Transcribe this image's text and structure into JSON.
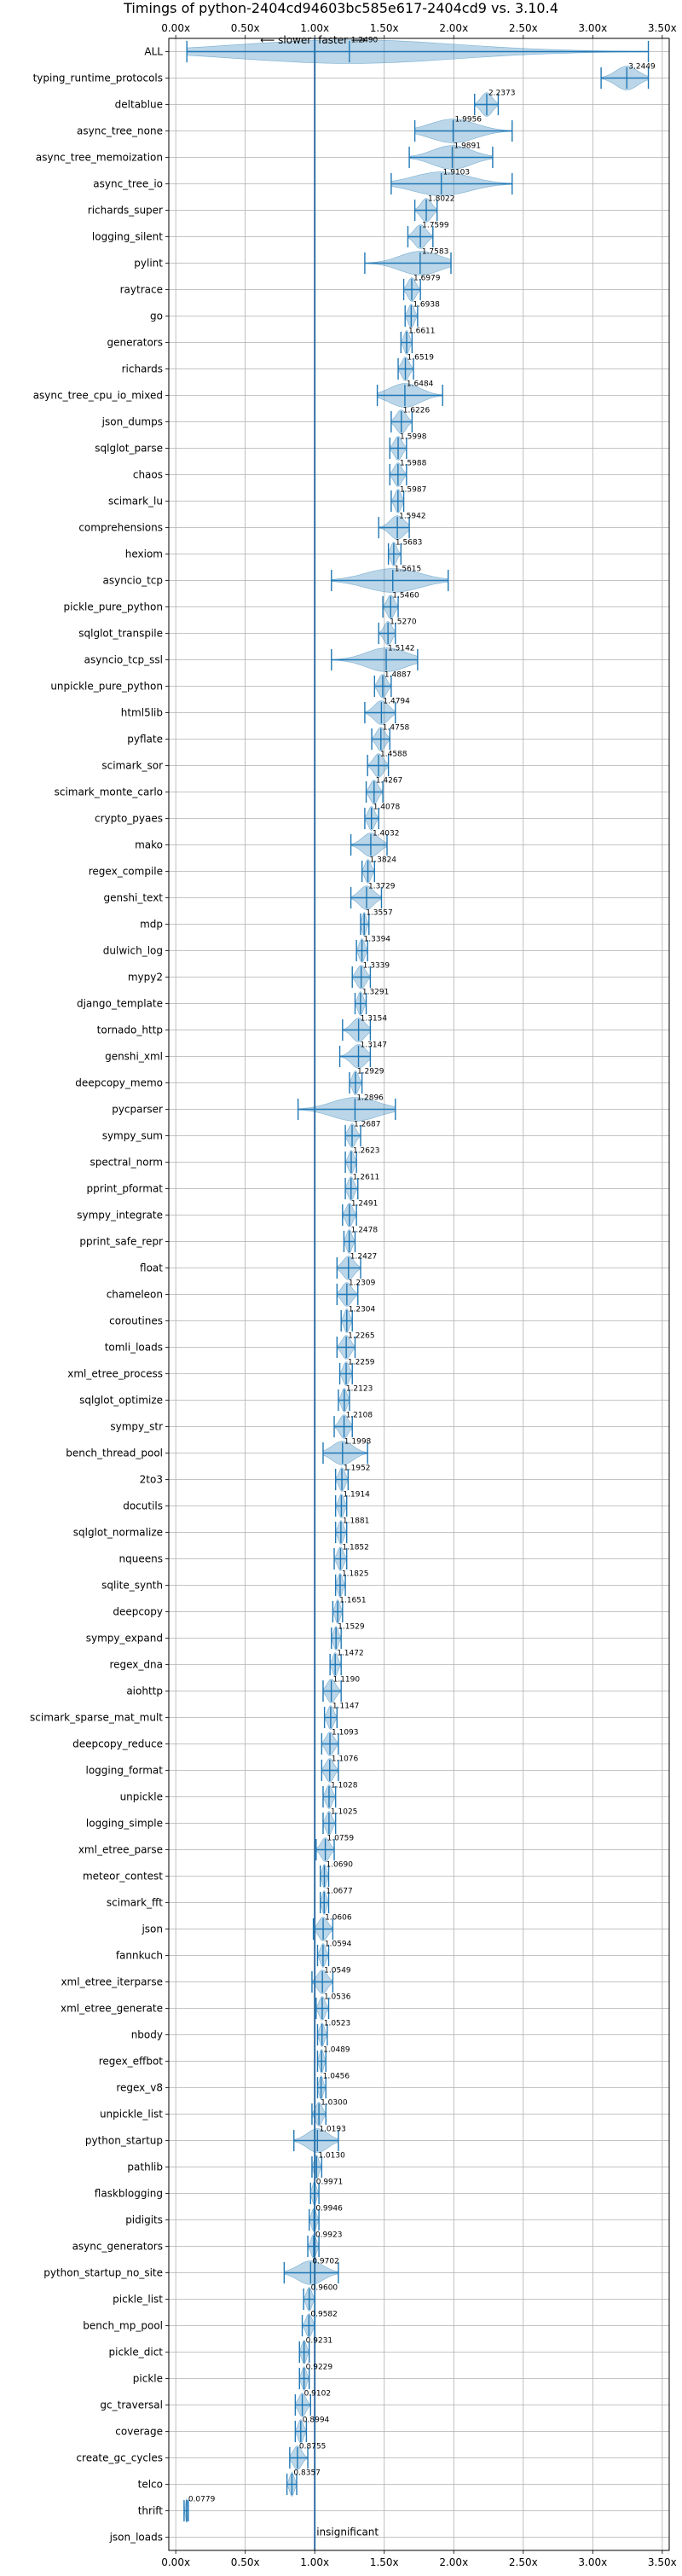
{
  "chart_data": {
    "type": "violin",
    "title": "Timings of python-2404cd94603bc585e617-2404cd9 vs. 3.10.4",
    "xlabel": "",
    "ylabel": "",
    "xlim": [
      -0.05,
      3.55
    ],
    "xticks": [
      0.0,
      0.5,
      1.0,
      1.5,
      2.0,
      2.5,
      3.0,
      3.5
    ],
    "xtick_labels": [
      "0.00x",
      "0.50x",
      "1.00x",
      "1.50x",
      "2.00x",
      "2.50x",
      "3.00x",
      "3.50x"
    ],
    "grid": true,
    "reference_line": 1.0,
    "annotations": {
      "slower": "⟵ slower",
      "faster": "faster ⟶",
      "insignificant": "insignificant"
    },
    "benchmarks": [
      {
        "name": "ALL",
        "value": 1.249,
        "min": 0.08,
        "max": 3.4
      },
      {
        "name": "typing_runtime_protocols",
        "value": 3.2449,
        "min": 3.06,
        "max": 3.4
      },
      {
        "name": "deltablue",
        "value": 2.2373,
        "min": 2.15,
        "max": 2.32
      },
      {
        "name": "async_tree_none",
        "value": 1.9956,
        "min": 1.72,
        "max": 2.42
      },
      {
        "name": "async_tree_memoization",
        "value": 1.9891,
        "min": 1.68,
        "max": 2.28
      },
      {
        "name": "async_tree_io",
        "value": 1.9103,
        "min": 1.55,
        "max": 2.42
      },
      {
        "name": "richards_super",
        "value": 1.8022,
        "min": 1.72,
        "max": 1.88
      },
      {
        "name": "logging_silent",
        "value": 1.7599,
        "min": 1.67,
        "max": 1.85
      },
      {
        "name": "pylint",
        "value": 1.7583,
        "min": 1.36,
        "max": 1.98
      },
      {
        "name": "raytrace",
        "value": 1.6979,
        "min": 1.64,
        "max": 1.76
      },
      {
        "name": "go",
        "value": 1.6938,
        "min": 1.65,
        "max": 1.74
      },
      {
        "name": "generators",
        "value": 1.6611,
        "min": 1.62,
        "max": 1.7
      },
      {
        "name": "richards",
        "value": 1.6519,
        "min": 1.6,
        "max": 1.71
      },
      {
        "name": "async_tree_cpu_io_mixed",
        "value": 1.6484,
        "min": 1.45,
        "max": 1.92
      },
      {
        "name": "json_dumps",
        "value": 1.6226,
        "min": 1.55,
        "max": 1.7
      },
      {
        "name": "sqlglot_parse",
        "value": 1.5998,
        "min": 1.54,
        "max": 1.66
      },
      {
        "name": "chaos",
        "value": 1.5988,
        "min": 1.54,
        "max": 1.66
      },
      {
        "name": "scimark_lu",
        "value": 1.5987,
        "min": 1.55,
        "max": 1.64
      },
      {
        "name": "comprehensions",
        "value": 1.5942,
        "min": 1.46,
        "max": 1.68
      },
      {
        "name": "hexiom",
        "value": 1.5683,
        "min": 1.53,
        "max": 1.62
      },
      {
        "name": "asyncio_tcp",
        "value": 1.5615,
        "min": 1.12,
        "max": 1.96
      },
      {
        "name": "pickle_pure_python",
        "value": 1.546,
        "min": 1.49,
        "max": 1.6
      },
      {
        "name": "sqlglot_transpile",
        "value": 1.527,
        "min": 1.46,
        "max": 1.58
      },
      {
        "name": "asyncio_tcp_ssl",
        "value": 1.5142,
        "min": 1.12,
        "max": 1.74
      },
      {
        "name": "unpickle_pure_python",
        "value": 1.4887,
        "min": 1.43,
        "max": 1.55
      },
      {
        "name": "html5lib",
        "value": 1.4794,
        "min": 1.36,
        "max": 1.58
      },
      {
        "name": "pyflate",
        "value": 1.4758,
        "min": 1.41,
        "max": 1.54
      },
      {
        "name": "scimark_sor",
        "value": 1.4588,
        "min": 1.38,
        "max": 1.53
      },
      {
        "name": "scimark_monte_carlo",
        "value": 1.4267,
        "min": 1.37,
        "max": 1.49
      },
      {
        "name": "crypto_pyaes",
        "value": 1.4078,
        "min": 1.36,
        "max": 1.46
      },
      {
        "name": "mako",
        "value": 1.4032,
        "min": 1.26,
        "max": 1.52
      },
      {
        "name": "regex_compile",
        "value": 1.3824,
        "min": 1.34,
        "max": 1.43
      },
      {
        "name": "genshi_text",
        "value": 1.3729,
        "min": 1.26,
        "max": 1.48
      },
      {
        "name": "mdp",
        "value": 1.3557,
        "min": 1.33,
        "max": 1.39
      },
      {
        "name": "dulwich_log",
        "value": 1.3394,
        "min": 1.3,
        "max": 1.38
      },
      {
        "name": "mypy2",
        "value": 1.3339,
        "min": 1.27,
        "max": 1.4
      },
      {
        "name": "django_template",
        "value": 1.3291,
        "min": 1.29,
        "max": 1.37
      },
      {
        "name": "tornado_http",
        "value": 1.3154,
        "min": 1.2,
        "max": 1.4
      },
      {
        "name": "genshi_xml",
        "value": 1.3147,
        "min": 1.18,
        "max": 1.4
      },
      {
        "name": "deepcopy_memo",
        "value": 1.2929,
        "min": 1.25,
        "max": 1.34
      },
      {
        "name": "pycparser",
        "value": 1.2896,
        "min": 0.88,
        "max": 1.58
      },
      {
        "name": "sympy_sum",
        "value": 1.2687,
        "min": 1.22,
        "max": 1.33
      },
      {
        "name": "spectral_norm",
        "value": 1.2623,
        "min": 1.22,
        "max": 1.3
      },
      {
        "name": "pprint_pformat",
        "value": 1.2611,
        "min": 1.22,
        "max": 1.31
      },
      {
        "name": "sympy_integrate",
        "value": 1.2491,
        "min": 1.2,
        "max": 1.3
      },
      {
        "name": "pprint_safe_repr",
        "value": 1.2478,
        "min": 1.21,
        "max": 1.29
      },
      {
        "name": "float",
        "value": 1.2427,
        "min": 1.16,
        "max": 1.33
      },
      {
        "name": "chameleon",
        "value": 1.2309,
        "min": 1.16,
        "max": 1.31
      },
      {
        "name": "coroutines",
        "value": 1.2304,
        "min": 1.19,
        "max": 1.27
      },
      {
        "name": "tomli_loads",
        "value": 1.2265,
        "min": 1.16,
        "max": 1.29
      },
      {
        "name": "xml_etree_process",
        "value": 1.2259,
        "min": 1.18,
        "max": 1.27
      },
      {
        "name": "sqlglot_optimize",
        "value": 1.2123,
        "min": 1.17,
        "max": 1.25
      },
      {
        "name": "sympy_str",
        "value": 1.2108,
        "min": 1.14,
        "max": 1.27
      },
      {
        "name": "bench_thread_pool",
        "value": 1.1998,
        "min": 1.06,
        "max": 1.38
      },
      {
        "name": "2to3",
        "value": 1.1952,
        "min": 1.15,
        "max": 1.24
      },
      {
        "name": "docutils",
        "value": 1.1914,
        "min": 1.15,
        "max": 1.23
      },
      {
        "name": "sqlglot_normalize",
        "value": 1.1881,
        "min": 1.15,
        "max": 1.23
      },
      {
        "name": "nqueens",
        "value": 1.1852,
        "min": 1.14,
        "max": 1.23
      },
      {
        "name": "sqlite_synth",
        "value": 1.1825,
        "min": 1.15,
        "max": 1.22
      },
      {
        "name": "deepcopy",
        "value": 1.1651,
        "min": 1.13,
        "max": 1.2
      },
      {
        "name": "sympy_expand",
        "value": 1.1529,
        "min": 1.12,
        "max": 1.19
      },
      {
        "name": "regex_dna",
        "value": 1.1472,
        "min": 1.11,
        "max": 1.19
      },
      {
        "name": "aiohttp",
        "value": 1.119,
        "min": 1.06,
        "max": 1.19
      },
      {
        "name": "scimark_sparse_mat_mult",
        "value": 1.1147,
        "min": 1.07,
        "max": 1.16
      },
      {
        "name": "deepcopy_reduce",
        "value": 1.1093,
        "min": 1.05,
        "max": 1.17
      },
      {
        "name": "logging_format",
        "value": 1.1076,
        "min": 1.05,
        "max": 1.17
      },
      {
        "name": "unpickle",
        "value": 1.1028,
        "min": 1.06,
        "max": 1.15
      },
      {
        "name": "logging_simple",
        "value": 1.1025,
        "min": 1.06,
        "max": 1.15
      },
      {
        "name": "xml_etree_parse",
        "value": 1.0759,
        "min": 1.01,
        "max": 1.14
      },
      {
        "name": "meteor_contest",
        "value": 1.069,
        "min": 1.04,
        "max": 1.1
      },
      {
        "name": "scimark_fft",
        "value": 1.0677,
        "min": 1.04,
        "max": 1.1
      },
      {
        "name": "json",
        "value": 1.0606,
        "min": 0.99,
        "max": 1.13
      },
      {
        "name": "fannkuch",
        "value": 1.0594,
        "min": 1.02,
        "max": 1.1
      },
      {
        "name": "xml_etree_iterparse",
        "value": 1.0549,
        "min": 0.98,
        "max": 1.13
      },
      {
        "name": "xml_etree_generate",
        "value": 1.0536,
        "min": 1.01,
        "max": 1.1
      },
      {
        "name": "nbody",
        "value": 1.0523,
        "min": 1.02,
        "max": 1.09
      },
      {
        "name": "regex_effbot",
        "value": 1.0489,
        "min": 1.02,
        "max": 1.08
      },
      {
        "name": "regex_v8",
        "value": 1.0456,
        "min": 1.02,
        "max": 1.08
      },
      {
        "name": "unpickle_list",
        "value": 1.03,
        "min": 0.98,
        "max": 1.08
      },
      {
        "name": "python_startup",
        "value": 1.0193,
        "min": 0.85,
        "max": 1.17
      },
      {
        "name": "pathlib",
        "value": 1.013,
        "min": 0.98,
        "max": 1.05
      },
      {
        "name": "flaskblogging",
        "value": 0.9971,
        "min": 0.97,
        "max": 1.03
      },
      {
        "name": "pidigits",
        "value": 0.9946,
        "min": 0.96,
        "max": 1.03
      },
      {
        "name": "async_generators",
        "value": 0.9923,
        "min": 0.95,
        "max": 1.03
      },
      {
        "name": "python_startup_no_site",
        "value": 0.9702,
        "min": 0.78,
        "max": 1.17
      },
      {
        "name": "pickle_list",
        "value": 0.96,
        "min": 0.92,
        "max": 1.0
      },
      {
        "name": "bench_mp_pool",
        "value": 0.9582,
        "min": 0.91,
        "max": 1.0
      },
      {
        "name": "pickle_dict",
        "value": 0.9231,
        "min": 0.89,
        "max": 0.96
      },
      {
        "name": "pickle",
        "value": 0.9229,
        "min": 0.89,
        "max": 0.96
      },
      {
        "name": "gc_traversal",
        "value": 0.9102,
        "min": 0.86,
        "max": 0.97
      },
      {
        "name": "coverage",
        "value": 0.8994,
        "min": 0.86,
        "max": 0.94
      },
      {
        "name": "create_gc_cycles",
        "value": 0.8755,
        "min": 0.82,
        "max": 0.95
      },
      {
        "name": "telco",
        "value": 0.8357,
        "min": 0.8,
        "max": 0.87
      },
      {
        "name": "thrift",
        "value": 0.0779,
        "min": 0.06,
        "max": 0.09
      },
      {
        "name": "json_loads",
        "value": null,
        "min": null,
        "max": null
      }
    ]
  }
}
